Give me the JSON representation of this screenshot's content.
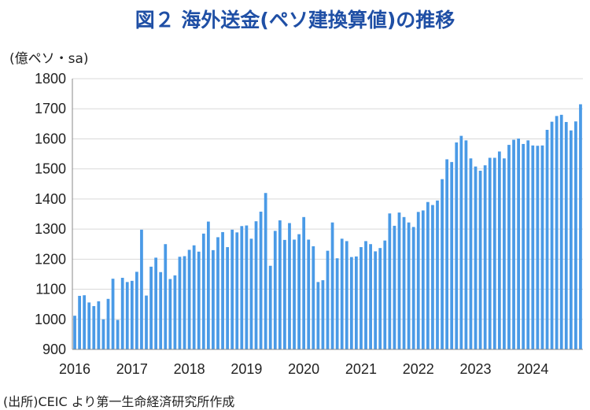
{
  "chart_data": {
    "type": "bar",
    "title": "図２ 海外送金(ペソ建換算値)の推移",
    "ylabel": "(億ペソ・sa)",
    "xlabel": "",
    "ylim": [
      900,
      1800
    ],
    "y_ticks": [
      900,
      1000,
      1100,
      1200,
      1300,
      1400,
      1500,
      1600,
      1700,
      1800
    ],
    "x_ticks": [
      "2016",
      "2017",
      "2018",
      "2019",
      "2020",
      "2021",
      "2022",
      "2023",
      "2024"
    ],
    "grid": true,
    "color": "#4a9ae6",
    "series": [
      {
        "name": "海外送金",
        "values": [
          1012,
          1078,
          1080,
          1056,
          1044,
          1060,
          1000,
          1068,
          1135,
          998,
          1138,
          1124,
          1128,
          1158,
          1298,
          1079,
          1175,
          1205,
          1157,
          1250,
          1134,
          1146,
          1208,
          1210,
          1231,
          1246,
          1225,
          1285,
          1325,
          1230,
          1273,
          1290,
          1240,
          1298,
          1289,
          1310,
          1312,
          1268,
          1326,
          1358,
          1420,
          1178,
          1294,
          1329,
          1264,
          1320,
          1265,
          1283,
          1340,
          1265,
          1243,
          1124,
          1130,
          1228,
          1322,
          1203,
          1268,
          1260,
          1207,
          1209,
          1240,
          1260,
          1250,
          1226,
          1237,
          1262,
          1352,
          1311,
          1355,
          1340,
          1322,
          1307,
          1357,
          1362,
          1390,
          1380,
          1395,
          1466,
          1532,
          1523,
          1588,
          1610,
          1595,
          1535,
          1508,
          1494,
          1512,
          1537,
          1537,
          1558,
          1535,
          1580,
          1597,
          1601,
          1583,
          1595,
          1578,
          1577,
          1578,
          1630,
          1657,
          1676,
          1680,
          1656,
          1628,
          1658,
          1715
        ]
      }
    ],
    "start": "2016-01"
  },
  "source_note": "(出所)CEIC より第一生命経済研究所作成"
}
